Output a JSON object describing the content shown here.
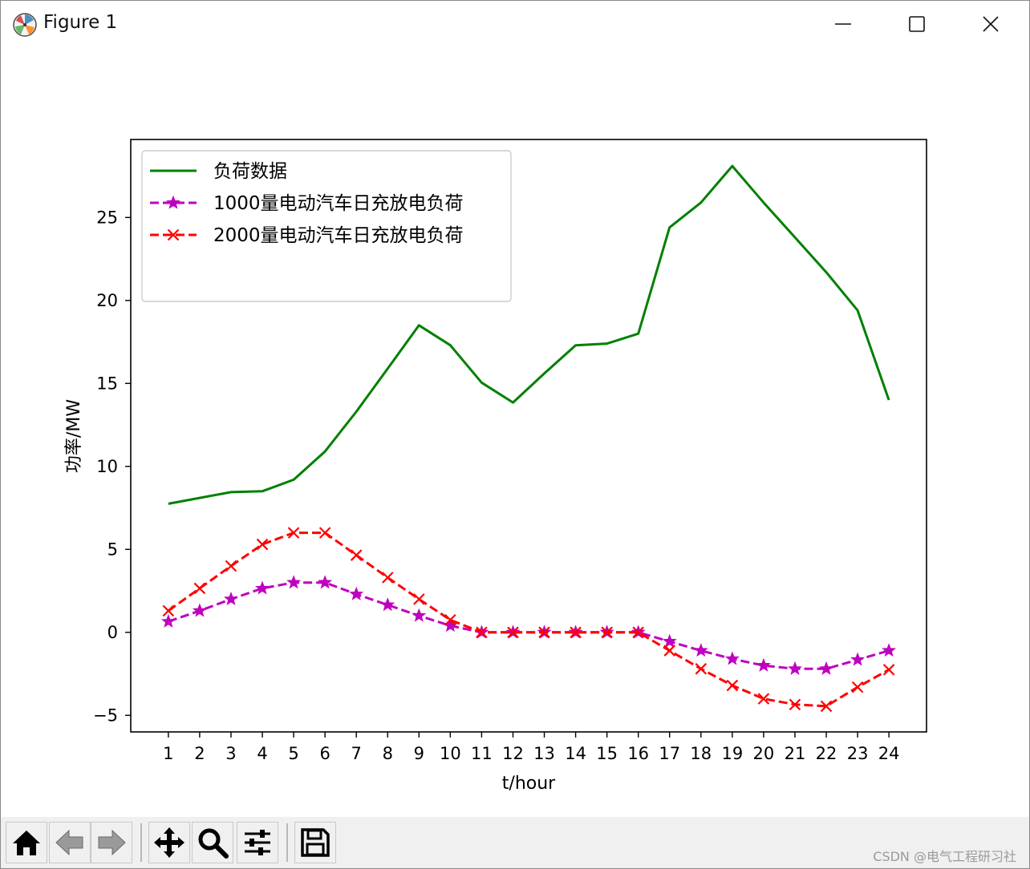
{
  "window": {
    "title": "Figure 1",
    "minimize_label": "Minimize",
    "maximize_label": "Maximize",
    "close_label": "Close"
  },
  "toolbar": {
    "buttons": [
      {
        "name": "home-button",
        "icon": "home-icon"
      },
      {
        "name": "back-button",
        "icon": "back-arrow-icon"
      },
      {
        "name": "forward-button",
        "icon": "forward-arrow-icon"
      },
      {
        "name": "pan-button",
        "icon": "move-icon"
      },
      {
        "name": "zoom-button",
        "icon": "zoom-icon"
      },
      {
        "name": "configure-subplots-button",
        "icon": "sliders-icon"
      },
      {
        "name": "save-button",
        "icon": "save-icon"
      }
    ]
  },
  "watermark": "CSDN @电气工程研习社",
  "chart_data": {
    "type": "line",
    "title": "",
    "xlabel": "t/hour",
    "ylabel": "功率/MW",
    "x": [
      1,
      2,
      3,
      4,
      5,
      6,
      7,
      8,
      9,
      10,
      11,
      12,
      13,
      14,
      15,
      16,
      17,
      18,
      19,
      20,
      21,
      22,
      23,
      24
    ],
    "xlim": [
      -0.2,
      25.2
    ],
    "ylim": [
      -6,
      29.7
    ],
    "xticks": [
      1,
      2,
      3,
      4,
      5,
      6,
      7,
      8,
      9,
      10,
      11,
      12,
      13,
      14,
      15,
      16,
      17,
      18,
      19,
      20,
      21,
      22,
      23,
      24
    ],
    "yticks": [
      -5,
      0,
      5,
      10,
      15,
      20,
      25
    ],
    "legend_position": "top-left",
    "grid": false,
    "series": [
      {
        "name": "负荷数据",
        "color": "#008000",
        "style": "solid",
        "marker": "none",
        "values": [
          7.75,
          8.1,
          8.45,
          8.5,
          9.2,
          10.9,
          13.3,
          15.9,
          18.5,
          17.3,
          15.05,
          13.85,
          15.6,
          17.3,
          17.4,
          18.0,
          24.4,
          25.9,
          28.1,
          25.9,
          23.8,
          21.7,
          19.4,
          14.0
        ]
      },
      {
        "name": "1000量电动汽车日充放电负荷",
        "color": "#bf00bf",
        "style": "dashed",
        "marker": "star",
        "values": [
          0.65,
          1.3,
          2.0,
          2.65,
          3.0,
          3.0,
          2.3,
          1.65,
          1.0,
          0.4,
          0.0,
          0.0,
          0.0,
          0.0,
          0.0,
          0.0,
          -0.55,
          -1.1,
          -1.6,
          -2.0,
          -2.2,
          -2.2,
          -1.65,
          -1.1
        ]
      },
      {
        "name": "2000量电动汽车日充放电负荷",
        "color": "#ff0000",
        "style": "dashed",
        "marker": "x",
        "values": [
          1.3,
          2.65,
          4.0,
          5.3,
          6.0,
          6.0,
          4.65,
          3.3,
          2.0,
          0.75,
          0.0,
          0.0,
          0.0,
          0.0,
          0.0,
          0.0,
          -1.1,
          -2.2,
          -3.2,
          -4.0,
          -4.35,
          -4.45,
          -3.3,
          -2.25
        ]
      }
    ]
  }
}
